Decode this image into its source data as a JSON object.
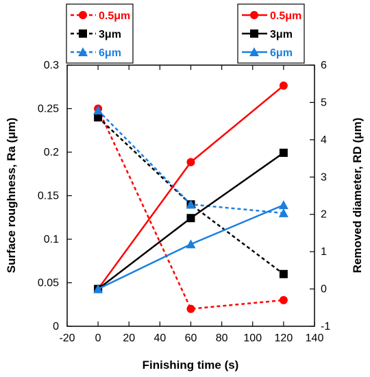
{
  "chart_data": {
    "type": "line",
    "xlabel": "Finishing time (s)",
    "ylabel_left": "Surface roughness, Ra (μm)",
    "ylabel_right": "Removed diameter, RD (μm)",
    "xlim": [
      -20,
      140
    ],
    "xticks": [
      "-20",
      "0",
      "20",
      "40",
      "60",
      "80",
      "100",
      "120",
      "140"
    ],
    "ylim_left": [
      0,
      0.3
    ],
    "yticks_left": [
      "0",
      "0.05",
      "0.1",
      "0.15",
      "0.2",
      "0.25",
      "0.3"
    ],
    "ylim_right": [
      -1,
      6
    ],
    "yticks_right": [
      "-1",
      "0",
      "1",
      "2",
      "3",
      "4",
      "5",
      "6"
    ],
    "grid": false,
    "legends": {
      "left": {
        "placement": "top-left",
        "style": "dashed"
      },
      "right": {
        "placement": "top-right",
        "style": "solid"
      }
    },
    "series": [
      {
        "name": "0.5μm",
        "axis": "left",
        "style": "dashed",
        "color": "#ff0000",
        "marker": "circle",
        "x": [
          0,
          60,
          120
        ],
        "y": [
          0.25,
          0.02,
          0.03
        ]
      },
      {
        "name": "3μm",
        "axis": "left",
        "style": "dashed",
        "color": "#000000",
        "marker": "square",
        "x": [
          0,
          60,
          120
        ],
        "y": [
          0.24,
          0.14,
          0.06
        ]
      },
      {
        "name": "6μm",
        "axis": "left",
        "style": "dashed",
        "color": "#1a7fe0",
        "marker": "triangle",
        "x": [
          0,
          60,
          120
        ],
        "y": [
          0.248,
          0.14,
          0.13
        ]
      },
      {
        "name": "0.5μm",
        "axis": "right",
        "style": "solid",
        "color": "#ff0000",
        "marker": "circle",
        "x": [
          0,
          60,
          120
        ],
        "y": [
          0,
          3.4,
          5.45
        ]
      },
      {
        "name": "3μm",
        "axis": "right",
        "style": "solid",
        "color": "#000000",
        "marker": "square",
        "x": [
          0,
          60,
          120
        ],
        "y": [
          0,
          1.9,
          3.65
        ]
      },
      {
        "name": "6μm",
        "axis": "right",
        "style": "solid",
        "color": "#1a7fe0",
        "marker": "triangle",
        "x": [
          0,
          60,
          120
        ],
        "y": [
          0,
          1.2,
          2.25
        ]
      }
    ]
  }
}
